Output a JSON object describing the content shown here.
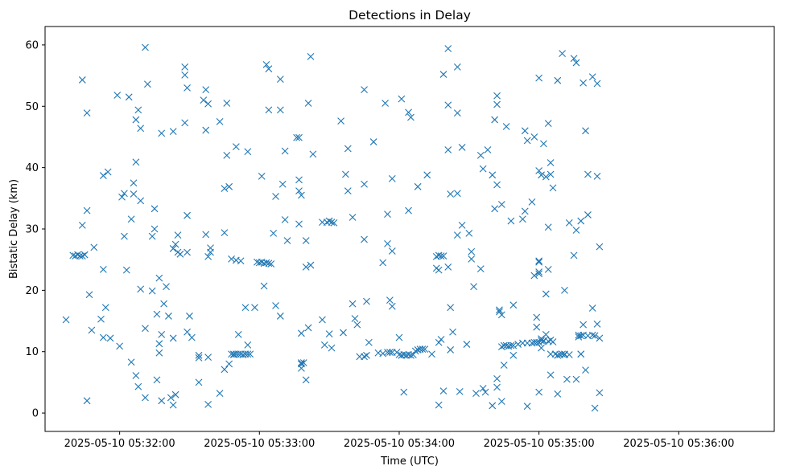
{
  "chart_data": {
    "type": "scatter",
    "title": "Detections in Delay",
    "xlabel": "Time (UTC)",
    "ylabel": "Bistatic Delay (km)",
    "marker": "x",
    "color": "#1f77b4",
    "grid": false,
    "xlim": [
      "2025-05-10 05:31:28",
      "2025-05-10 05:36:41"
    ],
    "ylim": [
      -3,
      63
    ],
    "x_ticks": [
      "2025-05-10 05:32:00",
      "2025-05-10 05:33:00",
      "2025-05-10 05:34:00",
      "2025-05-10 05:35:00",
      "2025-05-10 05:36:00"
    ],
    "y_ticks": [
      0,
      10,
      20,
      30,
      40,
      50,
      60
    ],
    "points": [
      [
        "05:31:37",
        15.2
      ],
      [
        "05:31:40",
        25.7
      ],
      [
        "05:31:41",
        25.6
      ],
      [
        "05:31:42",
        25.8
      ],
      [
        "05:31:43",
        25.6
      ],
      [
        "05:31:44",
        54.3
      ],
      [
        "05:31:44",
        30.6
      ],
      [
        "05:31:44",
        25.6
      ],
      [
        "05:31:45",
        25.8
      ],
      [
        "05:31:46",
        33.0
      ],
      [
        "05:31:46",
        48.9
      ],
      [
        "05:31:46",
        2.0
      ],
      [
        "05:31:47",
        19.3
      ],
      [
        "05:31:48",
        13.5
      ],
      [
        "05:31:49",
        27.0
      ],
      [
        "05:31:52",
        15.3
      ],
      [
        "05:31:53",
        23.4
      ],
      [
        "05:31:53",
        38.7
      ],
      [
        "05:31:53",
        12.3
      ],
      [
        "05:31:54",
        17.2
      ],
      [
        "05:31:55",
        39.3
      ],
      [
        "05:31:56",
        12.2
      ],
      [
        "05:31:59",
        51.8
      ],
      [
        "05:32:00",
        10.9
      ],
      [
        "05:32:01",
        35.2
      ],
      [
        "05:32:02",
        35.8
      ],
      [
        "05:32:02",
        28.8
      ],
      [
        "05:32:03",
        23.3
      ],
      [
        "05:32:04",
        51.5
      ],
      [
        "05:32:05",
        31.6
      ],
      [
        "05:32:05",
        8.3
      ],
      [
        "05:32:06",
        35.7
      ],
      [
        "05:32:06",
        37.5
      ],
      [
        "05:32:07",
        47.8
      ],
      [
        "05:32:07",
        40.9
      ],
      [
        "05:32:07",
        6.1
      ],
      [
        "05:32:08",
        49.4
      ],
      [
        "05:32:08",
        4.3
      ],
      [
        "05:32:09",
        46.4
      ],
      [
        "05:32:09",
        34.6
      ],
      [
        "05:32:09",
        20.2
      ],
      [
        "05:32:11",
        59.6
      ],
      [
        "05:32:11",
        13.8
      ],
      [
        "05:32:11",
        2.5
      ],
      [
        "05:32:12",
        53.6
      ],
      [
        "05:32:14",
        28.8
      ],
      [
        "05:32:14",
        19.9
      ],
      [
        "05:32:15",
        30.0
      ],
      [
        "05:32:15",
        33.3
      ],
      [
        "05:32:16",
        16.1
      ],
      [
        "05:32:16",
        5.4
      ],
      [
        "05:32:17",
        22.0
      ],
      [
        "05:32:17",
        11.3
      ],
      [
        "05:32:17",
        9.8
      ],
      [
        "05:32:18",
        45.6
      ],
      [
        "05:32:18",
        12.8
      ],
      [
        "05:32:18",
        2.0
      ],
      [
        "05:32:19",
        17.8
      ],
      [
        "05:32:20",
        20.6
      ],
      [
        "05:32:21",
        15.8
      ],
      [
        "05:32:22",
        2.5
      ],
      [
        "05:32:23",
        1.3
      ],
      [
        "05:32:23",
        45.9
      ],
      [
        "05:32:23",
        12.2
      ],
      [
        "05:32:23",
        26.8
      ],
      [
        "05:32:24",
        3.0
      ],
      [
        "05:32:24",
        27.5
      ],
      [
        "05:32:25",
        29.0
      ],
      [
        "05:32:25",
        26.2
      ],
      [
        "05:32:26",
        25.9
      ],
      [
        "05:32:28",
        56.4
      ],
      [
        "05:32:28",
        55.1
      ],
      [
        "05:32:28",
        47.3
      ],
      [
        "05:32:29",
        53.0
      ],
      [
        "05:32:29",
        32.2
      ],
      [
        "05:32:29",
        26.2
      ],
      [
        "05:32:29",
        13.2
      ],
      [
        "05:32:30",
        15.8
      ],
      [
        "05:32:31",
        12.3
      ],
      [
        "05:32:34",
        9.4
      ],
      [
        "05:32:34",
        9.0
      ],
      [
        "05:32:34",
        5.0
      ],
      [
        "05:32:36",
        51.0
      ],
      [
        "05:32:37",
        52.7
      ],
      [
        "05:32:37",
        29.1
      ],
      [
        "05:32:37",
        46.1
      ],
      [
        "05:32:38",
        50.4
      ],
      [
        "05:32:38",
        25.5
      ],
      [
        "05:32:38",
        1.4
      ],
      [
        "05:32:38",
        9.1
      ],
      [
        "05:32:39",
        26.2
      ],
      [
        "05:32:39",
        26.9
      ],
      [
        "05:32:43",
        3.2
      ],
      [
        "05:32:43",
        47.5
      ],
      [
        "05:32:45",
        36.6
      ],
      [
        "05:32:45",
        29.4
      ],
      [
        "05:32:45",
        7.1
      ],
      [
        "05:32:46",
        42.0
      ],
      [
        "05:32:46",
        50.5
      ],
      [
        "05:32:47",
        36.9
      ],
      [
        "05:32:47",
        8.0
      ],
      [
        "05:32:48",
        9.6
      ],
      [
        "05:32:48",
        25.1
      ],
      [
        "05:32:49",
        9.5
      ],
      [
        "05:32:49",
        9.6
      ],
      [
        "05:32:50",
        43.4
      ],
      [
        "05:32:50",
        9.6
      ],
      [
        "05:32:50",
        24.9
      ],
      [
        "05:32:51",
        12.8
      ],
      [
        "05:32:51",
        9.6
      ],
      [
        "05:32:52",
        24.8
      ],
      [
        "05:32:52",
        9.6
      ],
      [
        "05:32:53",
        9.5
      ],
      [
        "05:32:54",
        9.6
      ],
      [
        "05:32:54",
        17.2
      ],
      [
        "05:32:55",
        9.6
      ],
      [
        "05:32:55",
        42.6
      ],
      [
        "05:32:55",
        11.1
      ],
      [
        "05:32:56",
        9.6
      ],
      [
        "05:32:58",
        17.2
      ],
      [
        "05:32:59",
        24.6
      ],
      [
        "05:33:00",
        24.5
      ],
      [
        "05:33:01",
        24.6
      ],
      [
        "05:33:01",
        38.6
      ],
      [
        "05:33:02",
        24.4
      ],
      [
        "05:33:02",
        20.7
      ],
      [
        "05:33:03",
        24.5
      ],
      [
        "05:33:03",
        56.8
      ],
      [
        "05:33:04",
        24.4
      ],
      [
        "05:33:04",
        56.1
      ],
      [
        "05:33:04",
        49.4
      ],
      [
        "05:33:05",
        24.3
      ],
      [
        "05:33:06",
        29.3
      ],
      [
        "05:33:07",
        35.3
      ],
      [
        "05:33:07",
        17.5
      ],
      [
        "05:33:09",
        15.8
      ],
      [
        "05:33:09",
        54.4
      ],
      [
        "05:33:09",
        49.4
      ],
      [
        "05:33:10",
        37.3
      ],
      [
        "05:33:11",
        31.5
      ],
      [
        "05:33:11",
        42.7
      ],
      [
        "05:33:12",
        28.1
      ],
      [
        "05:33:16",
        44.9
      ],
      [
        "05:33:17",
        44.9
      ],
      [
        "05:33:17",
        38.0
      ],
      [
        "05:33:17",
        36.2
      ],
      [
        "05:33:17",
        30.8
      ],
      [
        "05:33:18",
        35.5
      ],
      [
        "05:33:18",
        8.2
      ],
      [
        "05:33:18",
        8.0
      ],
      [
        "05:33:18",
        13.0
      ],
      [
        "05:33:18",
        7.3
      ],
      [
        "05:33:19",
        8.2
      ],
      [
        "05:33:20",
        5.4
      ],
      [
        "05:33:20",
        28.1
      ],
      [
        "05:33:20",
        23.8
      ],
      [
        "05:33:21",
        50.5
      ],
      [
        "05:33:21",
        13.9
      ],
      [
        "05:33:22",
        58.1
      ],
      [
        "05:33:22",
        24.1
      ],
      [
        "05:33:23",
        42.2
      ],
      [
        "05:33:27",
        31.1
      ],
      [
        "05:33:27",
        15.2
      ],
      [
        "05:33:28",
        11.1
      ],
      [
        "05:33:29",
        31.1
      ],
      [
        "05:33:30",
        31.3
      ],
      [
        "05:33:30",
        12.9
      ],
      [
        "05:33:31",
        31.1
      ],
      [
        "05:33:31",
        10.6
      ],
      [
        "05:33:32",
        31.0
      ],
      [
        "05:33:35",
        47.6
      ],
      [
        "05:33:36",
        13.1
      ],
      [
        "05:33:37",
        38.9
      ],
      [
        "05:33:38",
        36.2
      ],
      [
        "05:33:38",
        43.1
      ],
      [
        "05:33:40",
        17.8
      ],
      [
        "05:33:40",
        31.9
      ],
      [
        "05:33:41",
        15.4
      ],
      [
        "05:33:42",
        14.4
      ],
      [
        "05:33:43",
        9.2
      ],
      [
        "05:33:45",
        9.2
      ],
      [
        "05:33:45",
        28.3
      ],
      [
        "05:33:45",
        52.7
      ],
      [
        "05:33:45",
        37.3
      ],
      [
        "05:33:46",
        18.2
      ],
      [
        "05:33:46",
        9.4
      ],
      [
        "05:33:47",
        11.5
      ],
      [
        "05:33:49",
        44.2
      ],
      [
        "05:33:51",
        9.8
      ],
      [
        "05:33:53",
        9.7
      ],
      [
        "05:33:53",
        24.5
      ],
      [
        "05:33:54",
        50.5
      ],
      [
        "05:33:55",
        27.6
      ],
      [
        "05:33:55",
        9.9
      ],
      [
        "05:33:55",
        32.4
      ],
      [
        "05:33:56",
        18.4
      ],
      [
        "05:33:56",
        9.9
      ],
      [
        "05:33:57",
        17.4
      ],
      [
        "05:33:57",
        9.9
      ],
      [
        "05:33:57",
        26.4
      ],
      [
        "05:33:57",
        38.2
      ],
      [
        "05:33:59",
        9.9
      ],
      [
        "05:34:00",
        9.5
      ],
      [
        "05:34:00",
        12.3
      ],
      [
        "05:34:01",
        51.2
      ],
      [
        "05:34:01",
        9.4
      ],
      [
        "05:34:02",
        9.5
      ],
      [
        "05:34:02",
        3.4
      ],
      [
        "05:34:03",
        9.4
      ],
      [
        "05:34:04",
        9.5
      ],
      [
        "05:34:04",
        33.0
      ],
      [
        "05:34:04",
        49.0
      ],
      [
        "05:34:05",
        9.4
      ],
      [
        "05:34:05",
        48.2
      ],
      [
        "05:34:06",
        9.5
      ],
      [
        "05:34:07",
        10.1
      ],
      [
        "05:34:08",
        10.3
      ],
      [
        "05:34:08",
        36.9
      ],
      [
        "05:34:09",
        10.4
      ],
      [
        "05:34:10",
        10.4
      ],
      [
        "05:34:11",
        10.4
      ],
      [
        "05:34:12",
        38.8
      ],
      [
        "05:34:14",
        9.6
      ],
      [
        "05:34:16",
        23.6
      ],
      [
        "05:34:16",
        25.5
      ],
      [
        "05:34:17",
        23.3
      ],
      [
        "05:34:17",
        1.3
      ],
      [
        "05:34:17",
        11.5
      ],
      [
        "05:34:17",
        25.7
      ],
      [
        "05:34:18",
        12.0
      ],
      [
        "05:34:18",
        25.6
      ],
      [
        "05:34:19",
        25.6
      ],
      [
        "05:34:19",
        3.6
      ],
      [
        "05:34:19",
        55.2
      ],
      [
        "05:34:21",
        23.8
      ],
      [
        "05:34:21",
        42.9
      ],
      [
        "05:34:21",
        50.2
      ],
      [
        "05:34:21",
        59.4
      ],
      [
        "05:34:22",
        10.3
      ],
      [
        "05:34:22",
        35.7
      ],
      [
        "05:34:22",
        17.2
      ],
      [
        "05:34:23",
        13.2
      ],
      [
        "05:34:25",
        35.8
      ],
      [
        "05:34:25",
        29.0
      ],
      [
        "05:34:25",
        48.9
      ],
      [
        "05:34:25",
        56.4
      ],
      [
        "05:34:26",
        3.5
      ],
      [
        "05:34:27",
        43.3
      ],
      [
        "05:34:27",
        30.6
      ],
      [
        "05:34:29",
        11.2
      ],
      [
        "05:34:30",
        29.3
      ],
      [
        "05:34:31",
        26.3
      ],
      [
        "05:34:31",
        25.1
      ],
      [
        "05:34:32",
        20.6
      ],
      [
        "05:34:33",
        3.2
      ],
      [
        "05:34:35",
        42.0
      ],
      [
        "05:34:35",
        23.5
      ],
      [
        "05:34:36",
        39.8
      ],
      [
        "05:34:36",
        4.0
      ],
      [
        "05:34:37",
        3.4
      ],
      [
        "05:34:38",
        42.9
      ],
      [
        "05:34:40",
        38.8
      ],
      [
        "05:34:40",
        1.2
      ],
      [
        "05:34:41",
        33.3
      ],
      [
        "05:34:41",
        47.8
      ],
      [
        "05:34:42",
        37.2
      ],
      [
        "05:34:42",
        51.7
      ],
      [
        "05:34:42",
        50.3
      ],
      [
        "05:34:42",
        4.2
      ],
      [
        "05:34:42",
        5.6
      ],
      [
        "05:34:43",
        16.5
      ],
      [
        "05:34:43",
        16.8
      ],
      [
        "05:34:44",
        34.0
      ],
      [
        "05:34:44",
        16.0
      ],
      [
        "05:34:44",
        10.8
      ],
      [
        "05:34:44",
        1.9
      ],
      [
        "05:34:45",
        11.0
      ],
      [
        "05:34:45",
        7.8
      ],
      [
        "05:34:46",
        11.0
      ],
      [
        "05:34:46",
        46.7
      ],
      [
        "05:34:47",
        10.9
      ],
      [
        "05:34:48",
        11.0
      ],
      [
        "05:34:48",
        31.3
      ],
      [
        "05:34:49",
        11.0
      ],
      [
        "05:34:49",
        17.6
      ],
      [
        "05:34:49",
        9.4
      ],
      [
        "05:34:51",
        11.2
      ],
      [
        "05:34:53",
        31.6
      ],
      [
        "05:34:53",
        11.4
      ],
      [
        "05:34:54",
        46.0
      ],
      [
        "05:34:54",
        32.9
      ],
      [
        "05:34:55",
        44.4
      ],
      [
        "05:34:55",
        11.4
      ],
      [
        "05:34:55",
        1.1
      ],
      [
        "05:34:57",
        11.4
      ],
      [
        "05:34:57",
        34.4
      ],
      [
        "05:34:58",
        11.5
      ],
      [
        "05:34:58",
        22.4
      ],
      [
        "05:34:58",
        45.0
      ],
      [
        "05:34:59",
        11.5
      ],
      [
        "05:34:59",
        14.0
      ],
      [
        "05:34:59",
        15.6
      ],
      [
        "05:35:00",
        39.5
      ],
      [
        "05:35:00",
        11.5
      ],
      [
        "05:35:00",
        24.8
      ],
      [
        "05:35:00",
        23.0
      ],
      [
        "05:35:00",
        54.6
      ],
      [
        "05:35:00",
        24.6
      ],
      [
        "05:35:00",
        22.7
      ],
      [
        "05:35:00",
        3.4
      ],
      [
        "05:35:01",
        11.8
      ],
      [
        "05:35:01",
        38.8
      ],
      [
        "05:35:01",
        12.1
      ],
      [
        "05:35:01",
        10.6
      ],
      [
        "05:35:02",
        43.9
      ],
      [
        "05:35:02",
        11.7
      ],
      [
        "05:35:02",
        11.8
      ],
      [
        "05:35:03",
        38.5
      ],
      [
        "05:35:03",
        12.8
      ],
      [
        "05:35:03",
        19.4
      ],
      [
        "05:35:04",
        47.2
      ],
      [
        "05:35:04",
        30.3
      ],
      [
        "05:35:04",
        23.4
      ],
      [
        "05:35:04",
        11.7
      ],
      [
        "05:35:05",
        11.9
      ],
      [
        "05:35:05",
        6.2
      ],
      [
        "05:35:05",
        40.8
      ],
      [
        "05:35:05",
        9.6
      ],
      [
        "05:35:05",
        38.9
      ],
      [
        "05:35:06",
        36.7
      ],
      [
        "05:35:06",
        11.6
      ],
      [
        "05:35:07",
        9.6
      ],
      [
        "05:35:08",
        3.1
      ],
      [
        "05:35:08",
        54.2
      ],
      [
        "05:35:08",
        9.4
      ],
      [
        "05:35:09",
        9.5
      ],
      [
        "05:35:10",
        9.6
      ],
      [
        "05:35:10",
        58.6
      ],
      [
        "05:35:11",
        9.5
      ],
      [
        "05:35:11",
        9.6
      ],
      [
        "05:35:11",
        20.0
      ],
      [
        "05:35:12",
        5.5
      ],
      [
        "05:35:13",
        9.5
      ],
      [
        "05:35:13",
        31.0
      ],
      [
        "05:35:15",
        25.7
      ],
      [
        "05:35:15",
        57.8
      ],
      [
        "05:35:16",
        57.1
      ],
      [
        "05:35:16",
        29.8
      ],
      [
        "05:35:16",
        5.5
      ],
      [
        "05:35:17",
        12.4
      ],
      [
        "05:35:17",
        12.7
      ],
      [
        "05:35:18",
        12.6
      ],
      [
        "05:35:18",
        9.6
      ],
      [
        "05:35:18",
        9.6
      ],
      [
        "05:35:18",
        31.3
      ],
      [
        "05:35:19",
        14.4
      ],
      [
        "05:35:19",
        53.8
      ],
      [
        "05:35:19",
        12.7
      ],
      [
        "05:35:20",
        46.0
      ],
      [
        "05:35:20",
        7.0
      ],
      [
        "05:35:21",
        12.6
      ],
      [
        "05:35:21",
        38.9
      ],
      [
        "05:35:21",
        32.3
      ],
      [
        "05:35:23",
        12.7
      ],
      [
        "05:35:23",
        54.8
      ],
      [
        "05:35:23",
        17.1
      ],
      [
        "05:35:24",
        12.6
      ],
      [
        "05:35:24",
        0.8
      ],
      [
        "05:35:25",
        53.7
      ],
      [
        "05:35:25",
        14.5
      ],
      [
        "05:35:25",
        38.6
      ],
      [
        "05:35:26",
        3.3
      ],
      [
        "05:35:26",
        12.2
      ],
      [
        "05:35:26",
        27.1
      ]
    ]
  }
}
